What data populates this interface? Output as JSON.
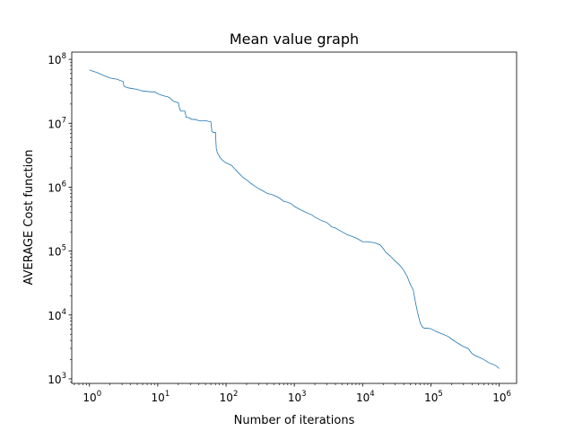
{
  "chart_data": {
    "type": "line",
    "title": "Mean value graph",
    "xlabel": "Number of iterations",
    "ylabel": "AVERAGE Cost function",
    "xscale": "log",
    "yscale": "log",
    "xlim": [
      0.55,
      1800000
    ],
    "ylim": [
      850,
      130000000
    ],
    "grid": false,
    "line_color": "#1f77b4",
    "x_ticks": [
      {
        "value": 1,
        "base": "10",
        "exp": "0"
      },
      {
        "value": 10,
        "base": "10",
        "exp": "1"
      },
      {
        "value": 100,
        "base": "10",
        "exp": "2"
      },
      {
        "value": 1000,
        "base": "10",
        "exp": "3"
      },
      {
        "value": 10000,
        "base": "10",
        "exp": "4"
      },
      {
        "value": 100000,
        "base": "10",
        "exp": "5"
      },
      {
        "value": 1000000,
        "base": "10",
        "exp": "6"
      }
    ],
    "y_ticks": [
      {
        "value": 1000,
        "base": "10",
        "exp": "3"
      },
      {
        "value": 10000,
        "base": "10",
        "exp": "4"
      },
      {
        "value": 100000,
        "base": "10",
        "exp": "5"
      },
      {
        "value": 1000000,
        "base": "10",
        "exp": "6"
      },
      {
        "value": 10000000,
        "base": "10",
        "exp": "7"
      },
      {
        "value": 100000000,
        "base": "10",
        "exp": "8"
      }
    ],
    "series": [
      {
        "x": [
          1,
          1.3,
          1.6,
          2,
          2.5,
          3.1,
          3.2,
          3.6,
          4.2,
          5,
          6,
          7,
          8,
          9,
          10,
          12,
          14,
          15,
          17,
          20,
          21,
          22,
          25,
          26,
          30,
          31,
          35,
          40,
          50,
          60,
          62,
          65,
          70,
          72,
          75,
          78,
          80,
          90,
          100,
          110,
          120,
          130,
          150,
          180,
          200,
          230,
          260,
          300,
          350,
          400,
          500,
          600,
          700,
          800,
          900,
          1000,
          1200,
          1500,
          1800,
          2000,
          2500,
          3000,
          3500,
          4000,
          5000,
          6000,
          7000,
          8000,
          9000,
          10000,
          12000,
          15000,
          18000,
          20000,
          22000,
          25000,
          30000,
          35000,
          40000,
          45000,
          50000,
          55000,
          60000,
          65000,
          70000,
          75000,
          80000,
          90000,
          100000,
          120000,
          150000,
          180000,
          200000,
          250000,
          300000,
          350000,
          400000,
          450000,
          500000,
          600000,
          700000,
          800000,
          900000,
          1000000
        ],
        "y": [
          68000000,
          62000000,
          56000000,
          51000000,
          49000000,
          45000000,
          38000000,
          36000000,
          35000000,
          34000000,
          32000000,
          31500000,
          31000000,
          31000000,
          29000000,
          27000000,
          26000000,
          25000000,
          22000000,
          21000000,
          16500000,
          15500000,
          15500000,
          12500000,
          12000000,
          11500000,
          11500000,
          11000000,
          11000000,
          10500000,
          7500000,
          7200000,
          7200000,
          4000000,
          3400000,
          3200000,
          3000000,
          2600000,
          2400000,
          2300000,
          2200000,
          2000000,
          1700000,
          1400000,
          1300000,
          1150000,
          1050000,
          950000,
          870000,
          800000,
          750000,
          680000,
          600000,
          580000,
          550000,
          500000,
          450000,
          400000,
          370000,
          340000,
          300000,
          280000,
          240000,
          230000,
          200000,
          180000,
          170000,
          160000,
          150000,
          140000,
          140000,
          135000,
          125000,
          110000,
          95000,
          85000,
          70000,
          60000,
          50000,
          40000,
          30000,
          25000,
          15000,
          10000,
          7500,
          6500,
          6200,
          6200,
          6100,
          5500,
          5000,
          4600,
          4200,
          3600,
          3200,
          3000,
          2500,
          2300,
          2200,
          2000,
          1800,
          1700,
          1600,
          1450
        ]
      }
    ]
  }
}
